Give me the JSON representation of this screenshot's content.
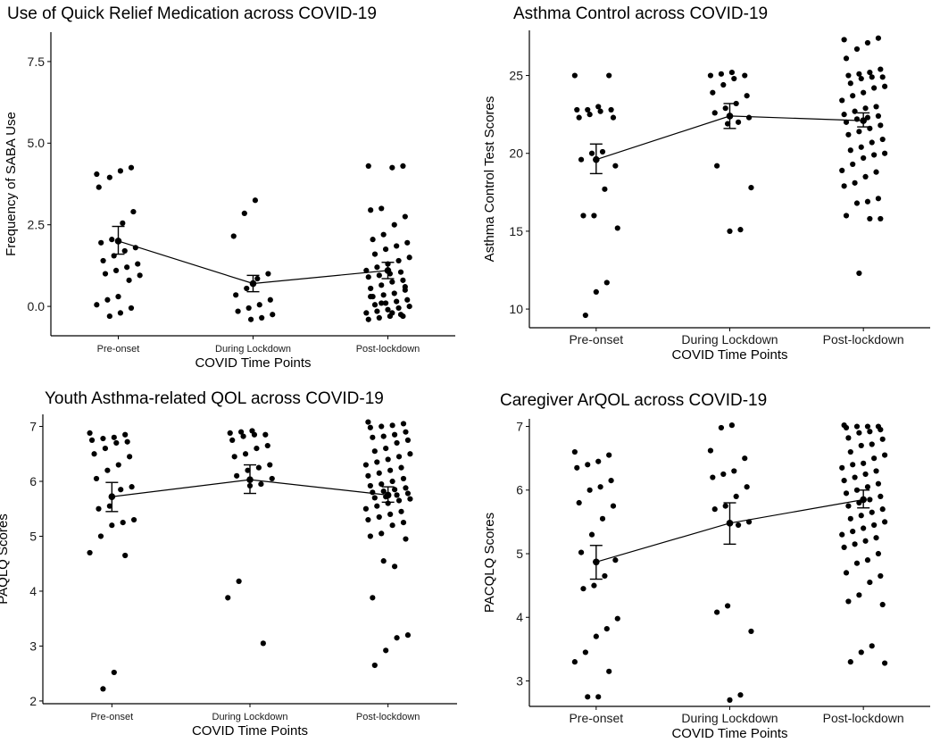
{
  "chart_data": [
    {
      "type": "scatter",
      "title": "Use of Quick Relief Medication across COVID-19",
      "xlabel": "COVID Time Points",
      "ylabel": "Frequency of SABA Use",
      "categories": [
        "Pre-onset",
        "During Lockdown",
        "Post-lockdown"
      ],
      "ylim": [
        -0.9,
        8.4
      ],
      "yticks": [
        0.0,
        2.5,
        5.0,
        7.5
      ],
      "ytick_labels": [
        "0.0",
        "2.5",
        "5.0",
        "7.5"
      ],
      "means": [
        2.0,
        0.7,
        1.1
      ],
      "ci_low": [
        1.6,
        0.45,
        0.85
      ],
      "ci_high": [
        2.45,
        0.95,
        1.35
      ],
      "points": [
        [
          4.05,
          4.25,
          4.15,
          3.95,
          3.65,
          2.9,
          2.55,
          2.05,
          1.95,
          1.8,
          1.7,
          1.55,
          1.4,
          1.3,
          1.2,
          1.1,
          1.0,
          0.95,
          0.8,
          0.3,
          0.2,
          0.05,
          -0.05,
          -0.2,
          -0.3
        ],
        [
          3.25,
          2.85,
          2.15,
          1.0,
          0.85,
          0.55,
          0.35,
          0.2,
          0.05,
          -0.05,
          -0.15,
          -0.25,
          -0.35,
          -0.4
        ],
        [
          4.3,
          4.3,
          4.25,
          3.0,
          2.95,
          2.75,
          2.5,
          2.2,
          2.05,
          1.95,
          1.85,
          1.75,
          1.6,
          1.5,
          1.4,
          1.3,
          1.2,
          1.1,
          1.05,
          1.0,
          0.95,
          0.9,
          0.8,
          0.75,
          0.65,
          0.55,
          0.5,
          0.4,
          0.35,
          0.3,
          0.2,
          0.15,
          0.1,
          0.05,
          0.0,
          -0.05,
          -0.1,
          -0.15,
          -0.2,
          -0.25,
          -0.3,
          -0.35,
          -0.4,
          -0.3,
          -0.2,
          0.1,
          0.3,
          0.6
        ]
      ]
    },
    {
      "type": "scatter",
      "title": "Asthma Control across COVID-19",
      "xlabel": "COVID Time Points",
      "ylabel": "Asthma Control Test Scores",
      "categories": [
        "Pre-onset",
        "During Lockdown",
        "Post-lockdown"
      ],
      "ylim": [
        8.8,
        27.9
      ],
      "yticks": [
        10,
        15,
        20,
        25
      ],
      "ytick_labels": [
        "10",
        "15",
        "20",
        "25"
      ],
      "means": [
        19.6,
        22.4,
        22.1
      ],
      "ci_low": [
        18.7,
        21.6,
        21.7
      ],
      "ci_high": [
        20.6,
        23.2,
        22.6
      ],
      "points": [
        [
          25.0,
          25.0,
          23.0,
          22.8,
          22.8,
          22.8,
          22.7,
          22.5,
          22.3,
          22.3,
          20.1,
          20.0,
          19.6,
          19.2,
          17.7,
          16.0,
          16.0,
          15.2,
          11.7,
          11.1,
          9.6
        ],
        [
          25.2,
          25.1,
          25.0,
          25.0,
          24.8,
          24.4,
          23.9,
          23.7,
          23.2,
          22.9,
          22.6,
          22.3,
          22.0,
          21.9,
          19.2,
          17.8,
          15.1,
          15.0
        ],
        [
          27.3,
          27.4,
          27.1,
          26.7,
          26.1,
          25.4,
          25.2,
          25.1,
          25.0,
          24.9,
          24.9,
          24.8,
          24.5,
          24.3,
          24.2,
          23.9,
          23.7,
          23.4,
          23.0,
          22.9,
          22.7,
          22.5,
          22.4,
          22.3,
          22.2,
          22.0,
          21.8,
          21.6,
          21.4,
          21.2,
          20.9,
          20.7,
          20.4,
          20.2,
          20.0,
          19.9,
          19.7,
          19.3,
          18.9,
          18.8,
          18.5,
          18.1,
          17.9,
          17.1,
          16.9,
          16.8,
          16.0,
          15.8,
          15.8,
          12.3
        ]
      ]
    },
    {
      "type": "scatter",
      "title": "Youth Asthma-related QOL across COVID-19",
      "xlabel": "COVID Time Points",
      "ylabel": "PAQLQ Scores",
      "categories": [
        "Pre-onset",
        "During Lockdown",
        "Post-lockdown"
      ],
      "ylim": [
        1.95,
        7.22
      ],
      "yticks": [
        2,
        3,
        4,
        5,
        6,
        7
      ],
      "ytick_labels": [
        "2",
        "3",
        "4",
        "5",
        "6",
        "7"
      ],
      "means": [
        5.72,
        6.03,
        5.75
      ],
      "ci_low": [
        5.45,
        5.78,
        5.62
      ],
      "ci_high": [
        5.98,
        6.3,
        5.9
      ],
      "points": [
        [
          6.88,
          6.85,
          6.8,
          6.78,
          6.75,
          6.72,
          6.7,
          6.6,
          6.5,
          6.45,
          6.3,
          6.2,
          6.05,
          5.9,
          5.85,
          5.55,
          5.5,
          5.3,
          5.25,
          5.2,
          5.0,
          4.7,
          4.65,
          2.52,
          2.22
        ],
        [
          6.92,
          6.9,
          6.88,
          6.85,
          6.85,
          6.82,
          6.75,
          6.65,
          6.6,
          6.5,
          6.45,
          6.3,
          6.25,
          6.2,
          6.1,
          6.05,
          5.95,
          5.92,
          4.18,
          3.88,
          3.05
        ],
        [
          7.08,
          7.05,
          7.02,
          7.0,
          6.98,
          6.9,
          6.85,
          6.82,
          6.8,
          6.75,
          6.7,
          6.6,
          6.55,
          6.5,
          6.45,
          6.4,
          6.35,
          6.3,
          6.25,
          6.2,
          6.15,
          6.1,
          6.05,
          6.0,
          5.95,
          5.92,
          5.88,
          5.85,
          5.82,
          5.8,
          5.78,
          5.75,
          5.72,
          5.7,
          5.68,
          5.65,
          5.6,
          5.55,
          5.5,
          5.45,
          5.4,
          5.35,
          5.3,
          5.25,
          5.2,
          5.05,
          5.0,
          4.95,
          4.45,
          4.55,
          3.88,
          3.2,
          3.15,
          2.92,
          2.65
        ]
      ]
    },
    {
      "type": "scatter",
      "title": "Caregiver ArQOL across COVID-19",
      "xlabel": "COVID Time Points",
      "ylabel": "PACQLQ Scores",
      "categories": [
        "Pre-onset",
        "During Lockdown",
        "Post-lockdown"
      ],
      "ylim": [
        2.6,
        7.12
      ],
      "yticks": [
        3,
        4,
        5,
        6,
        7
      ],
      "ytick_labels": [
        "3",
        "4",
        "5",
        "6",
        "7"
      ],
      "means": [
        4.87,
        5.48,
        5.85
      ],
      "ci_low": [
        4.6,
        5.15,
        5.72
      ],
      "ci_high": [
        5.13,
        5.8,
        6.0
      ],
      "points": [
        [
          6.6,
          6.55,
          6.45,
          6.4,
          6.35,
          6.15,
          6.05,
          6.0,
          5.8,
          5.75,
          5.55,
          5.3,
          5.02,
          4.9,
          4.65,
          4.5,
          4.45,
          3.98,
          3.82,
          3.7,
          3.45,
          3.3,
          3.15,
          2.75,
          2.75
        ],
        [
          7.02,
          6.98,
          6.62,
          6.5,
          6.3,
          6.25,
          6.2,
          6.05,
          5.9,
          5.75,
          5.7,
          5.5,
          5.45,
          4.18,
          4.08,
          3.78,
          2.78,
          2.7
        ],
        [
          7.02,
          7.0,
          7.0,
          7.0,
          6.98,
          6.95,
          6.92,
          6.9,
          6.82,
          6.8,
          6.72,
          6.7,
          6.6,
          6.55,
          6.5,
          6.42,
          6.4,
          6.35,
          6.3,
          6.25,
          6.2,
          6.15,
          6.1,
          6.05,
          6.0,
          5.95,
          5.9,
          5.85,
          5.8,
          5.75,
          5.7,
          5.65,
          5.6,
          5.55,
          5.5,
          5.45,
          5.4,
          5.35,
          5.3,
          5.25,
          5.2,
          5.15,
          5.1,
          5.0,
          4.9,
          4.85,
          4.7,
          4.65,
          4.55,
          4.35,
          4.25,
          4.2,
          3.55,
          3.45,
          3.3,
          3.28
        ]
      ]
    }
  ]
}
